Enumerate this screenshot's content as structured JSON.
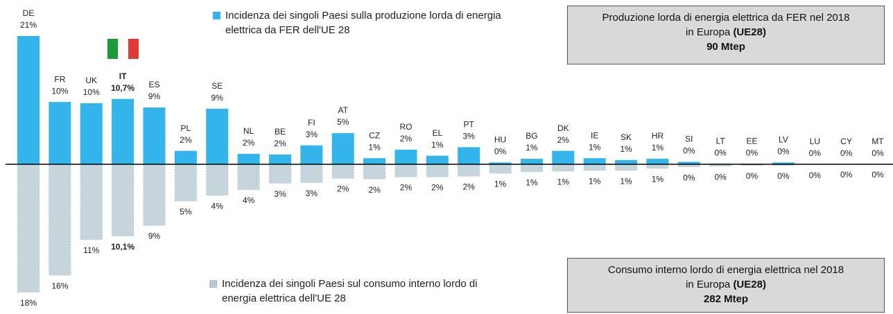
{
  "chart_data": {
    "type": "diverging-bar",
    "categories": [
      "DE",
      "FR",
      "UK",
      "IT",
      "ES",
      "PL",
      "SE",
      "NL",
      "BE",
      "FI",
      "AT",
      "CZ",
      "RO",
      "EL",
      "PT",
      "HU",
      "BG",
      "DK",
      "IE",
      "SK",
      "HR",
      "SI",
      "LT",
      "EE",
      "LV",
      "LU",
      "CY",
      "MT"
    ],
    "series": [
      {
        "name": "Incidenza dei singoli Paesi sulla produzione lorda di energia elettrica da FER dell'UE 28",
        "color": "#33b5ec",
        "values": [
          21,
          10.2,
          10,
          10.7,
          9.3,
          2.2,
          9.1,
          1.7,
          1.6,
          3.1,
          5.1,
          1,
          2.4,
          1.4,
          2.8,
          0.3,
          0.9,
          2.2,
          1,
          0.7,
          0.9,
          0.4,
          0.1,
          0.1,
          0.3,
          0,
          0,
          0
        ],
        "value_labels": [
          "21%",
          "10%",
          "10%",
          "10,7%",
          "9%",
          "2%",
          "9%",
          "2%",
          "2%",
          "3%",
          "5%",
          "1%",
          "2%",
          "1%",
          "3%",
          "0%",
          "1%",
          "2%",
          "1%",
          "1%",
          "1%",
          "0%",
          "0%",
          "0%",
          "0%",
          "0%",
          "0%",
          "0%"
        ]
      },
      {
        "name": "Incidenza dei singoli Paesi sul consumo interno lordo di energia elettrica dell'UE 28",
        "color": "#c9d7df",
        "axis": "y2",
        "values": [
          18,
          15.6,
          10.6,
          10.1,
          8.6,
          5.2,
          4.4,
          3.6,
          2.7,
          2.6,
          2,
          2.1,
          1.8,
          1.8,
          1.7,
          1.3,
          1.1,
          1,
          0.9,
          0.9,
          0.6,
          0.4,
          0.3,
          0.2,
          0.2,
          0.1,
          0,
          0
        ],
        "value_labels": [
          "18%",
          "16%",
          "11%",
          "10,1%",
          "9%",
          "5%",
          "4%",
          "4%",
          "3%",
          "3%",
          "2%",
          "2%",
          "2%",
          "2%",
          "2%",
          "1%",
          "1%",
          "1%",
          "1%",
          "1%",
          "1%",
          "0%",
          "0%",
          "0%",
          "0%",
          "0%",
          "0%",
          "0%"
        ]
      }
    ],
    "ylim": [
      0,
      21
    ],
    "y2lim": [
      0,
      18
    ],
    "highlight_index": 3,
    "highlight_color": "#e8322f",
    "boxes": [
      {
        "text": "Produzione lorda di energia elettrica da FER nel 2018",
        "region": "in Europa",
        "region_bold": "(UE28)",
        "total": "90 Mtep"
      },
      {
        "text": "Consumo interno lordo di energia elettrica nel 2018",
        "region": "in Europa",
        "region_bold": "(UE28)",
        "total": "282 Mtep"
      }
    ]
  }
}
